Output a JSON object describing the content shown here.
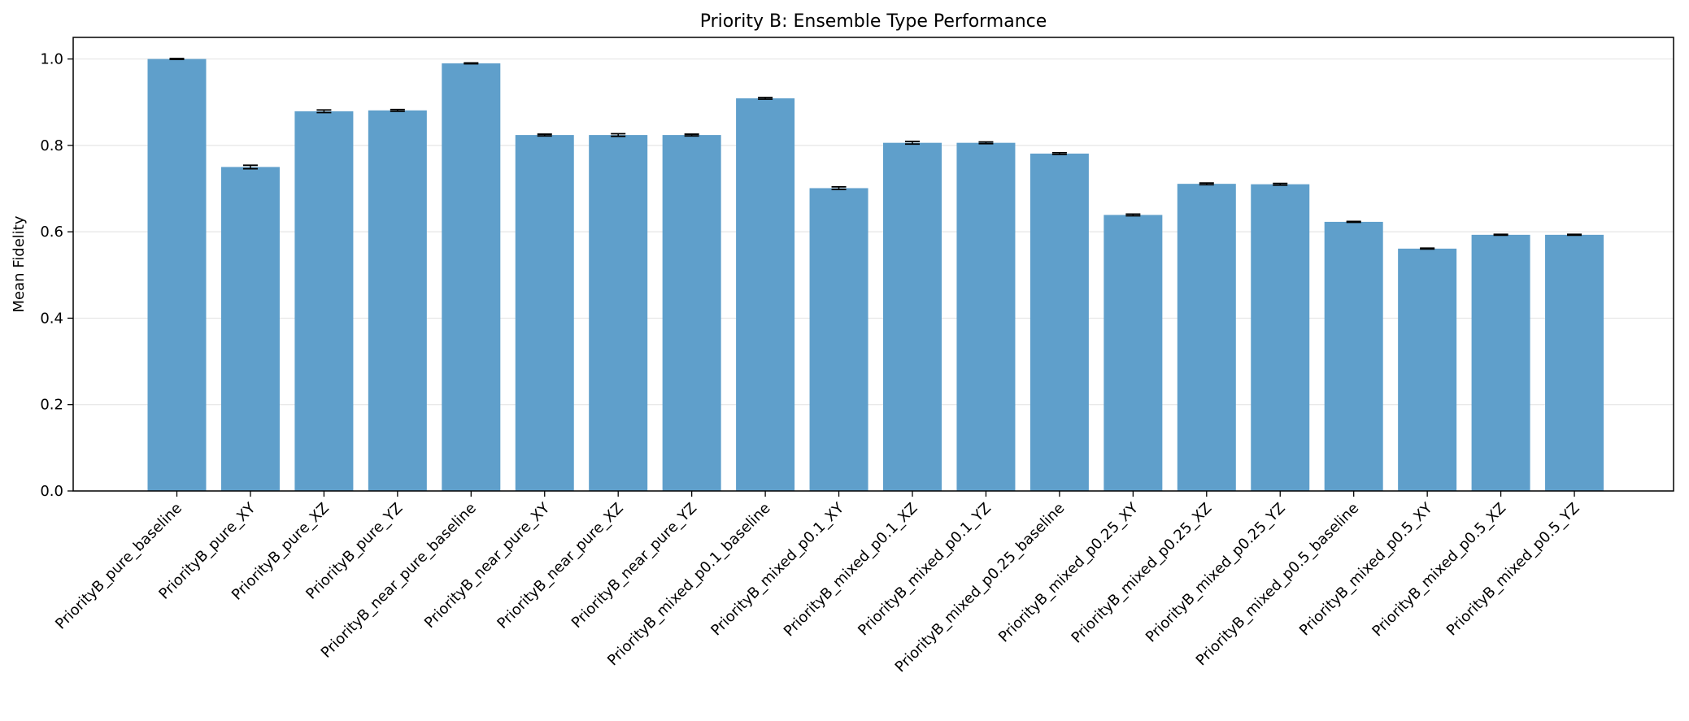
{
  "chart_data": {
    "type": "bar",
    "title": "Priority B: Ensemble Type Performance",
    "xlabel": "",
    "ylabel": "Mean Fidelity",
    "ylim": [
      0,
      1.05
    ],
    "yticks": [
      "0.0",
      "0.2",
      "0.4",
      "0.6",
      "0.8",
      "1.0"
    ],
    "grid": "y",
    "bar_color": "#5f9fcb",
    "categories": [
      "PriorityB_pure_baseline",
      "PriorityB_pure_XY",
      "PriorityB_pure_XZ",
      "PriorityB_pure_YZ",
      "PriorityB_near_pure_baseline",
      "PriorityB_near_pure_XY",
      "PriorityB_near_pure_XZ",
      "PriorityB_near_pure_YZ",
      "PriorityB_mixed_p0.1_baseline",
      "PriorityB_mixed_p0.1_XY",
      "PriorityB_mixed_p0.1_XZ",
      "PriorityB_mixed_p0.1_YZ",
      "PriorityB_mixed_p0.25_baseline",
      "PriorityB_mixed_p0.25_XY",
      "PriorityB_mixed_p0.25_XZ",
      "PriorityB_mixed_p0.25_YZ",
      "PriorityB_mixed_p0.5_baseline",
      "PriorityB_mixed_p0.5_XY",
      "PriorityB_mixed_p0.5_XZ",
      "PriorityB_mixed_p0.5_YZ"
    ],
    "values": [
      1.0,
      0.75,
      0.879,
      0.881,
      0.99,
      0.824,
      0.824,
      0.824,
      0.909,
      0.701,
      0.806,
      0.806,
      0.781,
      0.639,
      0.711,
      0.71,
      0.623,
      0.561,
      0.593,
      0.593
    ],
    "errors": [
      0.001,
      0.004,
      0.003,
      0.002,
      0.001,
      0.002,
      0.003,
      0.002,
      0.002,
      0.003,
      0.003,
      0.002,
      0.002,
      0.002,
      0.002,
      0.002,
      0.001,
      0.001,
      0.001,
      0.001
    ]
  }
}
